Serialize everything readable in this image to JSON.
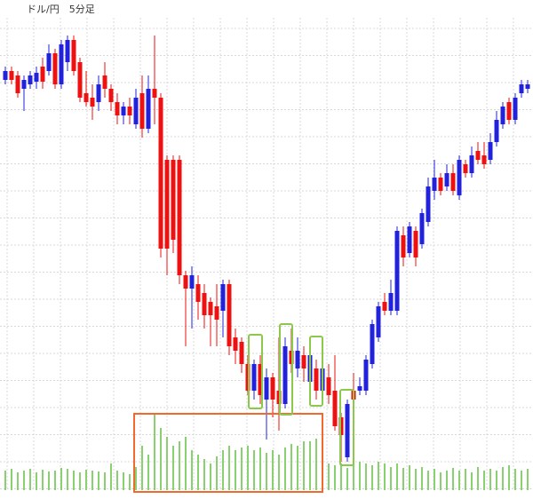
{
  "chart_data": {
    "type": "candlestick",
    "title": "ドル/円　5分足",
    "up_color": "#2222dd",
    "down_color": "#ee1111",
    "volume_color": "#88d070",
    "grid": true,
    "ylim": [
      0,
      560
    ],
    "vlim": [
      0,
      100
    ],
    "open": [
      470,
      480,
      475,
      460,
      465,
      468,
      485,
      480,
      500,
      465,
      490,
      515,
      490,
      455,
      450,
      445,
      475,
      460,
      445,
      430,
      440,
      420,
      455,
      415,
      460,
      450,
      380,
      380,
      380,
      250,
      235,
      240,
      230,
      220,
      215,
      210,
      240,
      180,
      175,
      150,
      120,
      150,
      110,
      135,
      120,
      105,
      165,
      145,
      160,
      130,
      145,
      120,
      135,
      120,
      90,
      45,
      120,
      120,
      120,
      150,
      180,
      220,
      210,
      210,
      295,
      275,
      300,
      285,
      310,
      345,
      360,
      350,
      365,
      340,
      375,
      365,
      390,
      385,
      380,
      400,
      420,
      445,
      425,
      455,
      460
    ],
    "close": [
      480,
      470,
      455,
      470,
      475,
      478,
      468,
      500,
      465,
      510,
      515,
      480,
      450,
      445,
      440,
      465,
      460,
      445,
      430,
      440,
      430,
      450,
      415,
      460,
      450,
      280,
      280,
      290,
      250,
      235,
      250,
      220,
      205,
      205,
      200,
      240,
      170,
      165,
      150,
      120,
      150,
      115,
      135,
      110,
      105,
      170,
      150,
      165,
      145,
      160,
      120,
      145,
      115,
      80,
      70,
      105,
      110,
      125,
      155,
      195,
      215,
      210,
      230,
      300,
      270,
      305,
      270,
      320,
      350,
      360,
      345,
      365,
      345,
      380,
      365,
      385,
      380,
      375,
      400,
      425,
      440,
      425,
      450,
      465,
      465
    ],
    "high": [
      485,
      485,
      480,
      475,
      480,
      485,
      495,
      510,
      505,
      515,
      520,
      520,
      495,
      480,
      465,
      475,
      490,
      465,
      455,
      445,
      450,
      460,
      475,
      475,
      520,
      455,
      385,
      385,
      385,
      255,
      260,
      250,
      240,
      225,
      240,
      245,
      245,
      190,
      180,
      160,
      155,
      160,
      145,
      140,
      180,
      180,
      190,
      180,
      170,
      165,
      155,
      160,
      150,
      160,
      95,
      110,
      140,
      135,
      160,
      200,
      220,
      230,
      245,
      305,
      305,
      310,
      305,
      325,
      360,
      380,
      365,
      375,
      375,
      385,
      380,
      395,
      400,
      400,
      410,
      435,
      445,
      450,
      455,
      470,
      470
    ],
    "low": [
      465,
      465,
      450,
      435,
      460,
      460,
      460,
      475,
      460,
      460,
      480,
      475,
      445,
      440,
      425,
      435,
      450,
      435,
      420,
      420,
      420,
      415,
      405,
      410,
      420,
      270,
      250,
      275,
      240,
      170,
      190,
      200,
      190,
      170,
      170,
      180,
      160,
      150,
      140,
      115,
      110,
      105,
      65,
      90,
      75,
      100,
      140,
      135,
      130,
      120,
      110,
      115,
      105,
      75,
      40,
      40,
      105,
      115,
      115,
      145,
      175,
      205,
      205,
      205,
      260,
      270,
      260,
      280,
      305,
      335,
      340,
      345,
      340,
      335,
      360,
      360,
      375,
      370,
      375,
      395,
      415,
      420,
      420,
      450,
      455
    ],
    "volume": [
      22,
      24,
      20,
      22,
      24,
      20,
      23,
      21,
      22,
      25,
      24,
      22,
      20,
      23,
      22,
      21,
      20,
      30,
      22,
      20,
      18,
      26,
      50,
      40,
      85,
      70,
      60,
      50,
      55,
      60,
      45,
      40,
      35,
      30,
      38,
      45,
      50,
      45,
      48,
      50,
      45,
      48,
      42,
      45,
      40,
      48,
      52,
      50,
      55,
      55,
      58,
      45,
      30,
      28,
      30,
      25,
      35,
      32,
      30,
      28,
      32,
      30,
      26,
      30,
      25,
      28,
      24,
      26,
      22,
      24,
      20,
      22,
      25,
      22,
      24,
      20,
      26,
      22,
      24,
      22,
      26,
      28,
      24,
      22,
      24
    ]
  }
}
